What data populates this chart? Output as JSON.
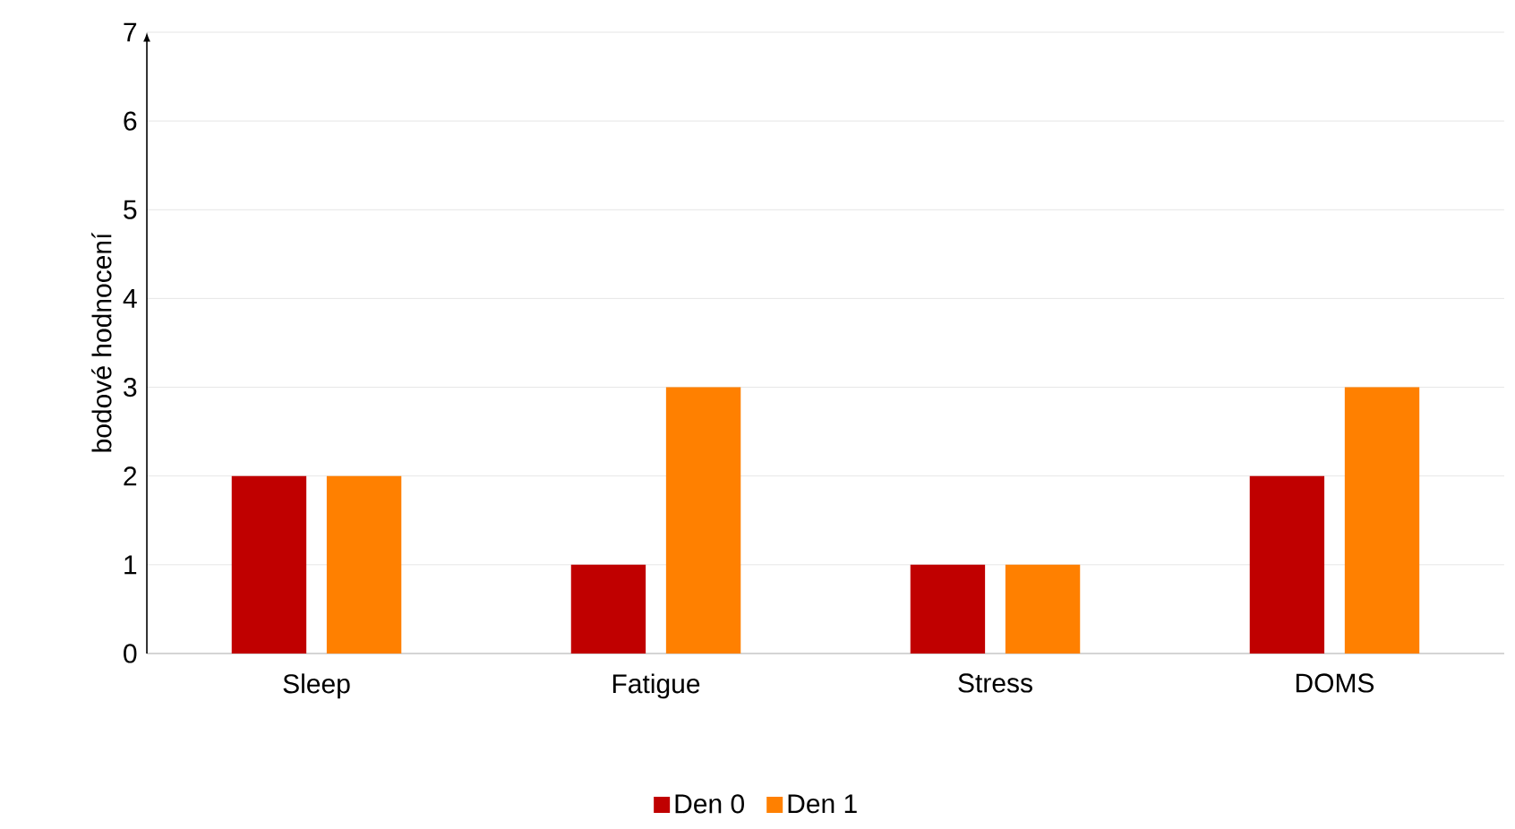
{
  "chart_data": {
    "type": "bar",
    "ylabel": "bodové hodnocení",
    "categories": [
      "Sleep",
      "Fatigue",
      "Stress",
      "DOMS"
    ],
    "series": [
      {
        "name": "Den 0",
        "color": "#c00000",
        "values": [
          2,
          1,
          1,
          2
        ]
      },
      {
        "name": "Den 1",
        "color": "#ff8000",
        "values": [
          2,
          3,
          1,
          3
        ]
      }
    ],
    "ylim": [
      0,
      7
    ],
    "yticks": [
      0,
      1,
      2,
      3,
      4,
      5,
      6,
      7
    ],
    "grid": "y",
    "legend": "bottom"
  }
}
